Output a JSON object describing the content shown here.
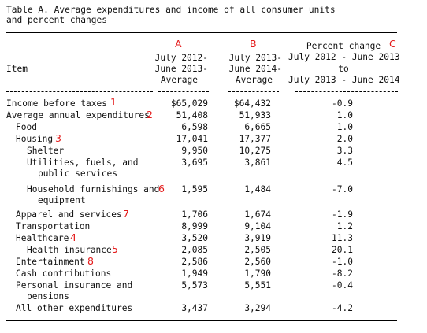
{
  "title": [
    "Table A. Average expenditures and income of all consumer units",
    "and percent changes"
  ],
  "columns": {
    "item": "Item",
    "a": {
      "marker": "A",
      "lines": [
        "July 2012-",
        "June 2013-",
        "Average"
      ]
    },
    "b": {
      "marker": "B",
      "lines": [
        "July 2013-",
        "June 2014-",
        "Average"
      ]
    },
    "c": {
      "marker": "C",
      "lines": [
        "Percent change",
        "July 2012 - June 2013",
        "to",
        "July 2013 - June 2014"
      ]
    }
  },
  "rows": [
    {
      "item": [
        "Income before taxes"
      ],
      "marker": "1",
      "a": "$65,029",
      "b": "$64,432",
      "c": "-0.9"
    },
    {
      "item": [
        "Average annual expenditures"
      ],
      "marker": "2",
      "a": "51,408",
      "b": "51,933",
      "c": "1.0"
    },
    {
      "item": [
        "Food"
      ],
      "marker": "",
      "a": "6,598",
      "b": "6,665",
      "c": "1.0"
    },
    {
      "item": [
        "Housing"
      ],
      "marker": "3",
      "a": "17,041",
      "b": "17,377",
      "c": "2.0"
    },
    {
      "item": [
        "Shelter"
      ],
      "marker": "",
      "a": "9,950",
      "b": "10,275",
      "c": "3.3"
    },
    {
      "item": [
        "Utilities, fuels, and",
        "public services"
      ],
      "marker": "",
      "a": "3,695",
      "b": "3,861",
      "c": "4.5"
    },
    {
      "item": [
        "Household furnishings and",
        "equipment"
      ],
      "marker": "6",
      "a": "1,595",
      "b": "1,484",
      "c": "-7.0"
    },
    {
      "item": [
        "Apparel and services"
      ],
      "marker": "7",
      "a": "1,706",
      "b": "1,674",
      "c": "-1.9"
    },
    {
      "item": [
        "Transportation"
      ],
      "marker": "",
      "a": "8,999",
      "b": "9,104",
      "c": "1.2"
    },
    {
      "item": [
        "Healthcare"
      ],
      "marker": "4",
      "a": "3,520",
      "b": "3,919",
      "c": "11.3"
    },
    {
      "item": [
        "Health insurance"
      ],
      "marker": "5",
      "a": "2,085",
      "b": "2,505",
      "c": "20.1"
    },
    {
      "item": [
        "Entertainment"
      ],
      "marker": "8",
      "a": "2,586",
      "b": "2,560",
      "c": "-1.0"
    },
    {
      "item": [
        "Cash contributions"
      ],
      "marker": "",
      "a": "1,949",
      "b": "1,790",
      "c": "-8.2"
    },
    {
      "item": [
        "Personal insurance and",
        "pensions"
      ],
      "marker": "",
      "a": "5,573",
      "b": "5,551",
      "c": "-0.4"
    },
    {
      "item": [
        "All other expenditures"
      ],
      "marker": "",
      "a": "3,437",
      "b": "3,294",
      "c": "-4.2"
    }
  ]
}
